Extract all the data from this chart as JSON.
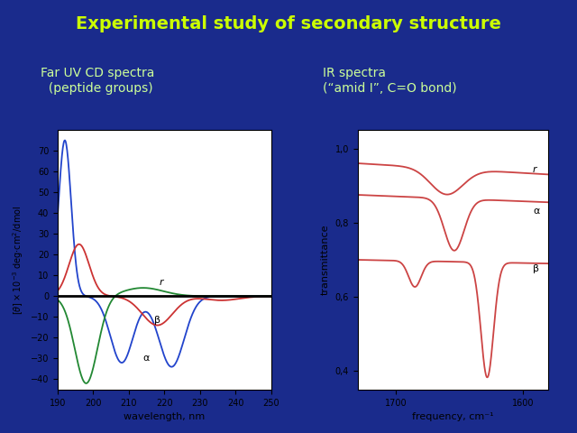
{
  "title": "Experimental study of secondary structure",
  "title_color": "#ccff00",
  "title_fontsize": 14,
  "bg_color": "#1a2b8c",
  "left_label": "Far UV CD spectra\n  (peptide groups)",
  "right_label": "IR spectra\n(“amid I”, C=O bond)",
  "label_color": "#ccff99",
  "label_fontsize": 10,
  "cd_xlabel": "wavelength, nm",
  "cd_xlim": [
    190,
    250
  ],
  "cd_ylim": [
    -45,
    80
  ],
  "cd_yticks": [
    -40,
    -30,
    -20,
    -10,
    0,
    10,
    20,
    30,
    40,
    50,
    60,
    70
  ],
  "ir_xlabel": "frequency, cm⁻¹",
  "ir_ylabel": "transmittance",
  "ir_xlim": [
    1730,
    1580
  ],
  "ir_ylim": [
    0.35,
    1.05
  ],
  "ir_yticks": [
    0.4,
    0.6,
    0.8,
    1.0
  ],
  "alpha_color": "#2244cc",
  "beta_color": "#cc3333",
  "random_color": "#228833",
  "ir_color": "#cc4444"
}
